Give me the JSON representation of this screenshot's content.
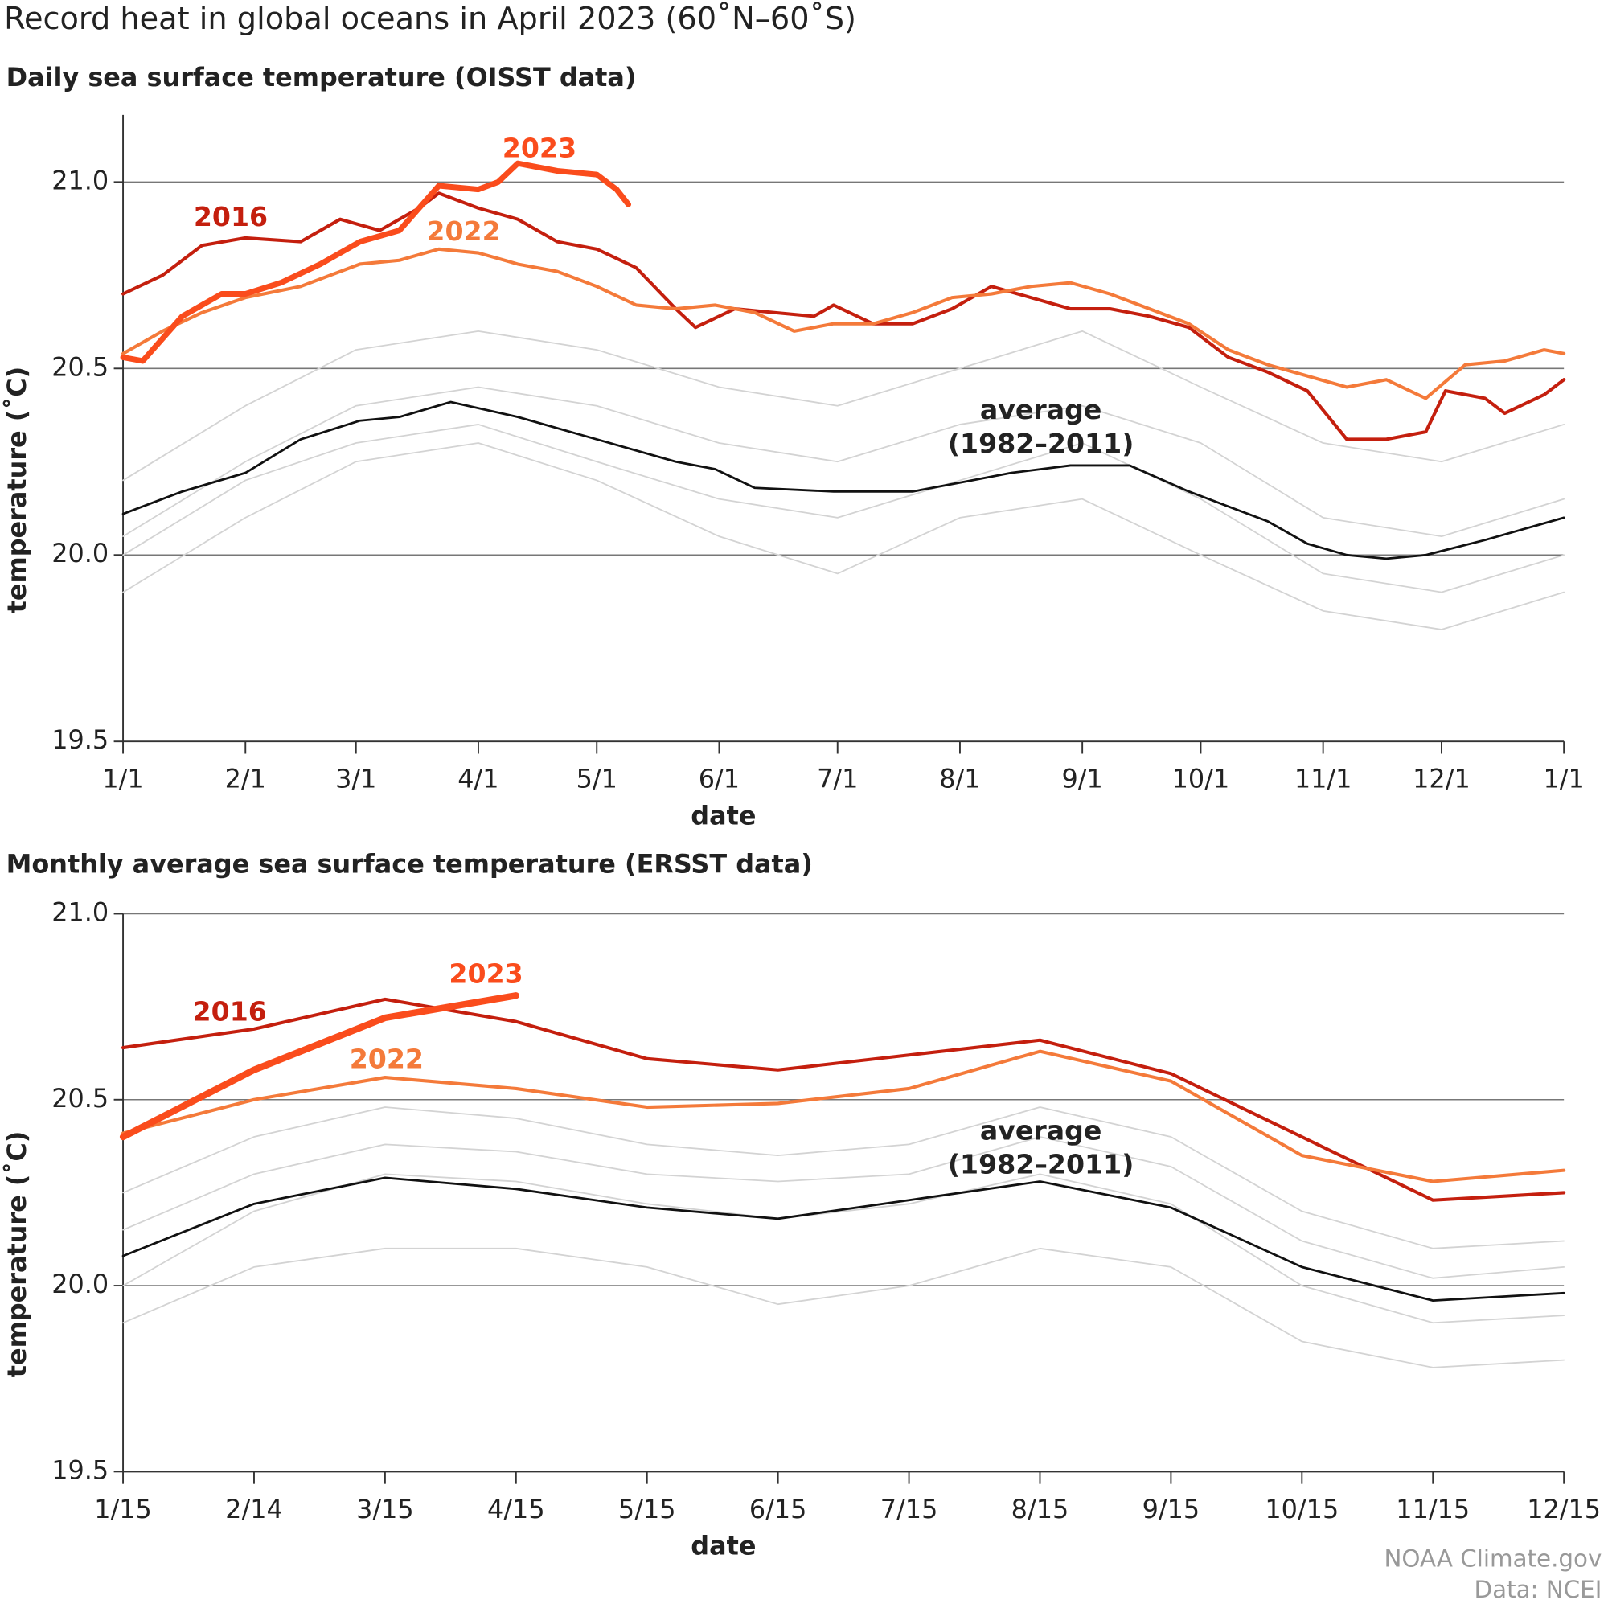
{
  "title": "Record heat in global oceans in April 2023 (60˚N–60˚S)",
  "credits": [
    "NOAA Climate.gov",
    "Data: NCEI"
  ],
  "chart_data": [
    {
      "type": "line",
      "title": "Daily sea surface temperature (OISST data)",
      "xlabel": "date",
      "ylabel": "temperature (˚C)",
      "xlim": [
        0,
        365
      ],
      "xticks": [
        {
          "value": 0,
          "label": "1/1"
        },
        {
          "value": 31,
          "label": "2/1"
        },
        {
          "value": 59,
          "label": "3/1"
        },
        {
          "value": 90,
          "label": "4/1"
        },
        {
          "value": 120,
          "label": "5/1"
        },
        {
          "value": 151,
          "label": "6/1"
        },
        {
          "value": 181,
          "label": "7/1"
        },
        {
          "value": 212,
          "label": "8/1"
        },
        {
          "value": 243,
          "label": "9/1"
        },
        {
          "value": 273,
          "label": "10/1"
        },
        {
          "value": 304,
          "label": "11/1"
        },
        {
          "value": 334,
          "label": "12/1"
        },
        {
          "value": 365,
          "label": "1/1"
        }
      ],
      "ylim": [
        19.5,
        21.18
      ],
      "yticks": [
        19.5,
        {
          "value": 20,
          "label": "20.0"
        },
        20.5,
        {
          "value": 21,
          "label": "21.0"
        }
      ],
      "grid": true,
      "annotations": [
        "average",
        "(1982–2011)"
      ],
      "series": [
        {
          "color": "#d3d3d3",
          "x": [
            0,
            31,
            59,
            90,
            120,
            151,
            181,
            212,
            243,
            273,
            304,
            334,
            365
          ],
          "values": [
            20.05,
            20.25,
            20.4,
            20.45,
            20.4,
            20.3,
            20.25,
            20.35,
            20.4,
            20.3,
            20.1,
            20.05,
            20.15
          ]
        },
        {
          "color": "#d3d3d3",
          "x": [
            0,
            31,
            59,
            90,
            120,
            151,
            181,
            212,
            243,
            273,
            304,
            334,
            365
          ],
          "values": [
            19.9,
            20.1,
            20.25,
            20.3,
            20.2,
            20.05,
            19.95,
            20.1,
            20.15,
            20.0,
            19.85,
            19.8,
            19.9
          ]
        },
        {
          "color": "#d3d3d3",
          "x": [
            0,
            31,
            59,
            90,
            120,
            151,
            181,
            212,
            243,
            273,
            304,
            334,
            365
          ],
          "values": [
            20.2,
            20.4,
            20.55,
            20.6,
            20.55,
            20.45,
            20.4,
            20.5,
            20.6,
            20.45,
            20.3,
            20.25,
            20.35
          ]
        },
        {
          "color": "#d3d3d3",
          "x": [
            0,
            31,
            59,
            90,
            120,
            151,
            181,
            212,
            243,
            273,
            304,
            334,
            365
          ],
          "values": [
            20.0,
            20.2,
            20.3,
            20.35,
            20.25,
            20.15,
            20.1,
            20.2,
            20.3,
            20.15,
            19.95,
            19.9,
            20.0
          ]
        },
        {
          "color": "#111111",
          "x": [
            0,
            15,
            31,
            45,
            60,
            70,
            83,
            100,
            120,
            140,
            150,
            160,
            180,
            200,
            215,
            225,
            240,
            255,
            270,
            290,
            300,
            310,
            320,
            330,
            345,
            365
          ],
          "values": [
            20.11,
            20.17,
            20.22,
            20.31,
            20.36,
            20.37,
            20.41,
            20.37,
            20.31,
            20.25,
            20.23,
            20.18,
            20.17,
            20.17,
            20.2,
            20.22,
            20.24,
            20.24,
            20.17,
            20.09,
            20.03,
            20.0,
            19.99,
            20.0,
            20.04,
            20.1
          ]
        },
        {
          "name": "2016",
          "color": "#c41f0e",
          "x": [
            0,
            10,
            20,
            31,
            45,
            55,
            65,
            75,
            80,
            90,
            100,
            110,
            120,
            130,
            140,
            145,
            155,
            165,
            175,
            180,
            190,
            200,
            210,
            220,
            230,
            240,
            250,
            260,
            270,
            280,
            290,
            300,
            310,
            320,
            330,
            335,
            345,
            350,
            360,
            365
          ],
          "values": [
            20.7,
            20.75,
            20.83,
            20.85,
            20.84,
            20.9,
            20.87,
            20.93,
            20.97,
            20.93,
            20.9,
            20.84,
            20.82,
            20.77,
            20.66,
            20.61,
            20.66,
            20.65,
            20.64,
            20.67,
            20.62,
            20.62,
            20.66,
            20.72,
            20.69,
            20.66,
            20.66,
            20.64,
            20.61,
            20.53,
            20.49,
            20.44,
            20.31,
            20.31,
            20.33,
            20.44,
            20.42,
            20.38,
            20.43,
            20.47
          ]
        },
        {
          "name": "2022",
          "color": "#f47a3a",
          "x": [
            0,
            10,
            20,
            31,
            45,
            60,
            70,
            80,
            90,
            100,
            110,
            120,
            130,
            140,
            150,
            160,
            170,
            180,
            190,
            200,
            210,
            220,
            230,
            240,
            250,
            260,
            270,
            280,
            290,
            300,
            310,
            320,
            330,
            340,
            350,
            360,
            365
          ],
          "values": [
            20.54,
            20.6,
            20.65,
            20.69,
            20.72,
            20.78,
            20.79,
            20.82,
            20.81,
            20.78,
            20.76,
            20.72,
            20.67,
            20.66,
            20.67,
            20.65,
            20.6,
            20.62,
            20.62,
            20.65,
            20.69,
            20.7,
            20.72,
            20.73,
            20.7,
            20.66,
            20.62,
            20.55,
            20.51,
            20.48,
            20.45,
            20.47,
            20.42,
            20.51,
            20.52,
            20.55,
            20.54
          ]
        },
        {
          "name": "2023",
          "color": "#fa4c1c",
          "x": [
            0,
            5,
            15,
            25,
            31,
            40,
            50,
            60,
            70,
            75,
            80,
            90,
            95,
            100,
            110,
            120,
            125,
            128
          ],
          "values": [
            20.53,
            20.52,
            20.64,
            20.7,
            20.7,
            20.73,
            20.78,
            20.84,
            20.87,
            20.93,
            20.99,
            20.98,
            21.0,
            21.05,
            21.03,
            21.02,
            20.98,
            20.94
          ]
        }
      ]
    },
    {
      "type": "line",
      "title": "Monthly average sea surface temperature (ERSST data)",
      "xlabel": "date",
      "ylabel": "temperature (˚C)",
      "categories": [
        "1/15",
        "2/14",
        "3/15",
        "4/15",
        "5/15",
        "6/15",
        "7/15",
        "8/15",
        "9/15",
        "10/15",
        "11/15",
        "12/15"
      ],
      "ylim": [
        19.5,
        21
      ],
      "yticks": [
        19.5,
        {
          "value": 20,
          "label": "20.0"
        },
        20.5,
        {
          "value": 21,
          "label": "21.0"
        }
      ],
      "grid": true,
      "annotations": [
        "average",
        "(1982–2011)"
      ],
      "series": [
        {
          "color": "#d3d3d3",
          "values": [
            20.0,
            20.2,
            20.3,
            20.28,
            20.22,
            20.18,
            20.22,
            20.3,
            20.22,
            20.0,
            19.9,
            19.92
          ]
        },
        {
          "color": "#d3d3d3",
          "values": [
            20.25,
            20.4,
            20.48,
            20.45,
            20.38,
            20.35,
            20.38,
            20.48,
            20.4,
            20.2,
            20.1,
            20.12
          ]
        },
        {
          "color": "#d3d3d3",
          "values": [
            19.9,
            20.05,
            20.1,
            20.1,
            20.05,
            19.95,
            20.0,
            20.1,
            20.05,
            19.85,
            19.78,
            19.8
          ]
        },
        {
          "color": "#d3d3d3",
          "values": [
            20.15,
            20.3,
            20.38,
            20.36,
            20.3,
            20.28,
            20.3,
            20.4,
            20.32,
            20.12,
            20.02,
            20.05
          ]
        },
        {
          "color": "#111111",
          "values": [
            20.08,
            20.22,
            20.29,
            20.26,
            20.21,
            20.18,
            20.23,
            20.28,
            20.21,
            20.05,
            19.96,
            19.98
          ]
        },
        {
          "name": "2016",
          "color": "#c41f0e",
          "values": [
            20.64,
            20.69,
            20.77,
            20.71,
            20.61,
            20.58,
            20.62,
            20.66,
            20.57,
            20.4,
            20.23,
            20.25
          ]
        },
        {
          "name": "2022",
          "color": "#f47a3a",
          "values": [
            20.41,
            20.5,
            20.56,
            20.53,
            20.48,
            20.49,
            20.53,
            20.63,
            20.55,
            20.35,
            20.28,
            20.31
          ]
        },
        {
          "name": "2023",
          "color": "#fa4c1c",
          "values": [
            20.4,
            20.58,
            20.72,
            20.78,
            null,
            null,
            null,
            null,
            null,
            null,
            null,
            null
          ]
        }
      ]
    }
  ]
}
